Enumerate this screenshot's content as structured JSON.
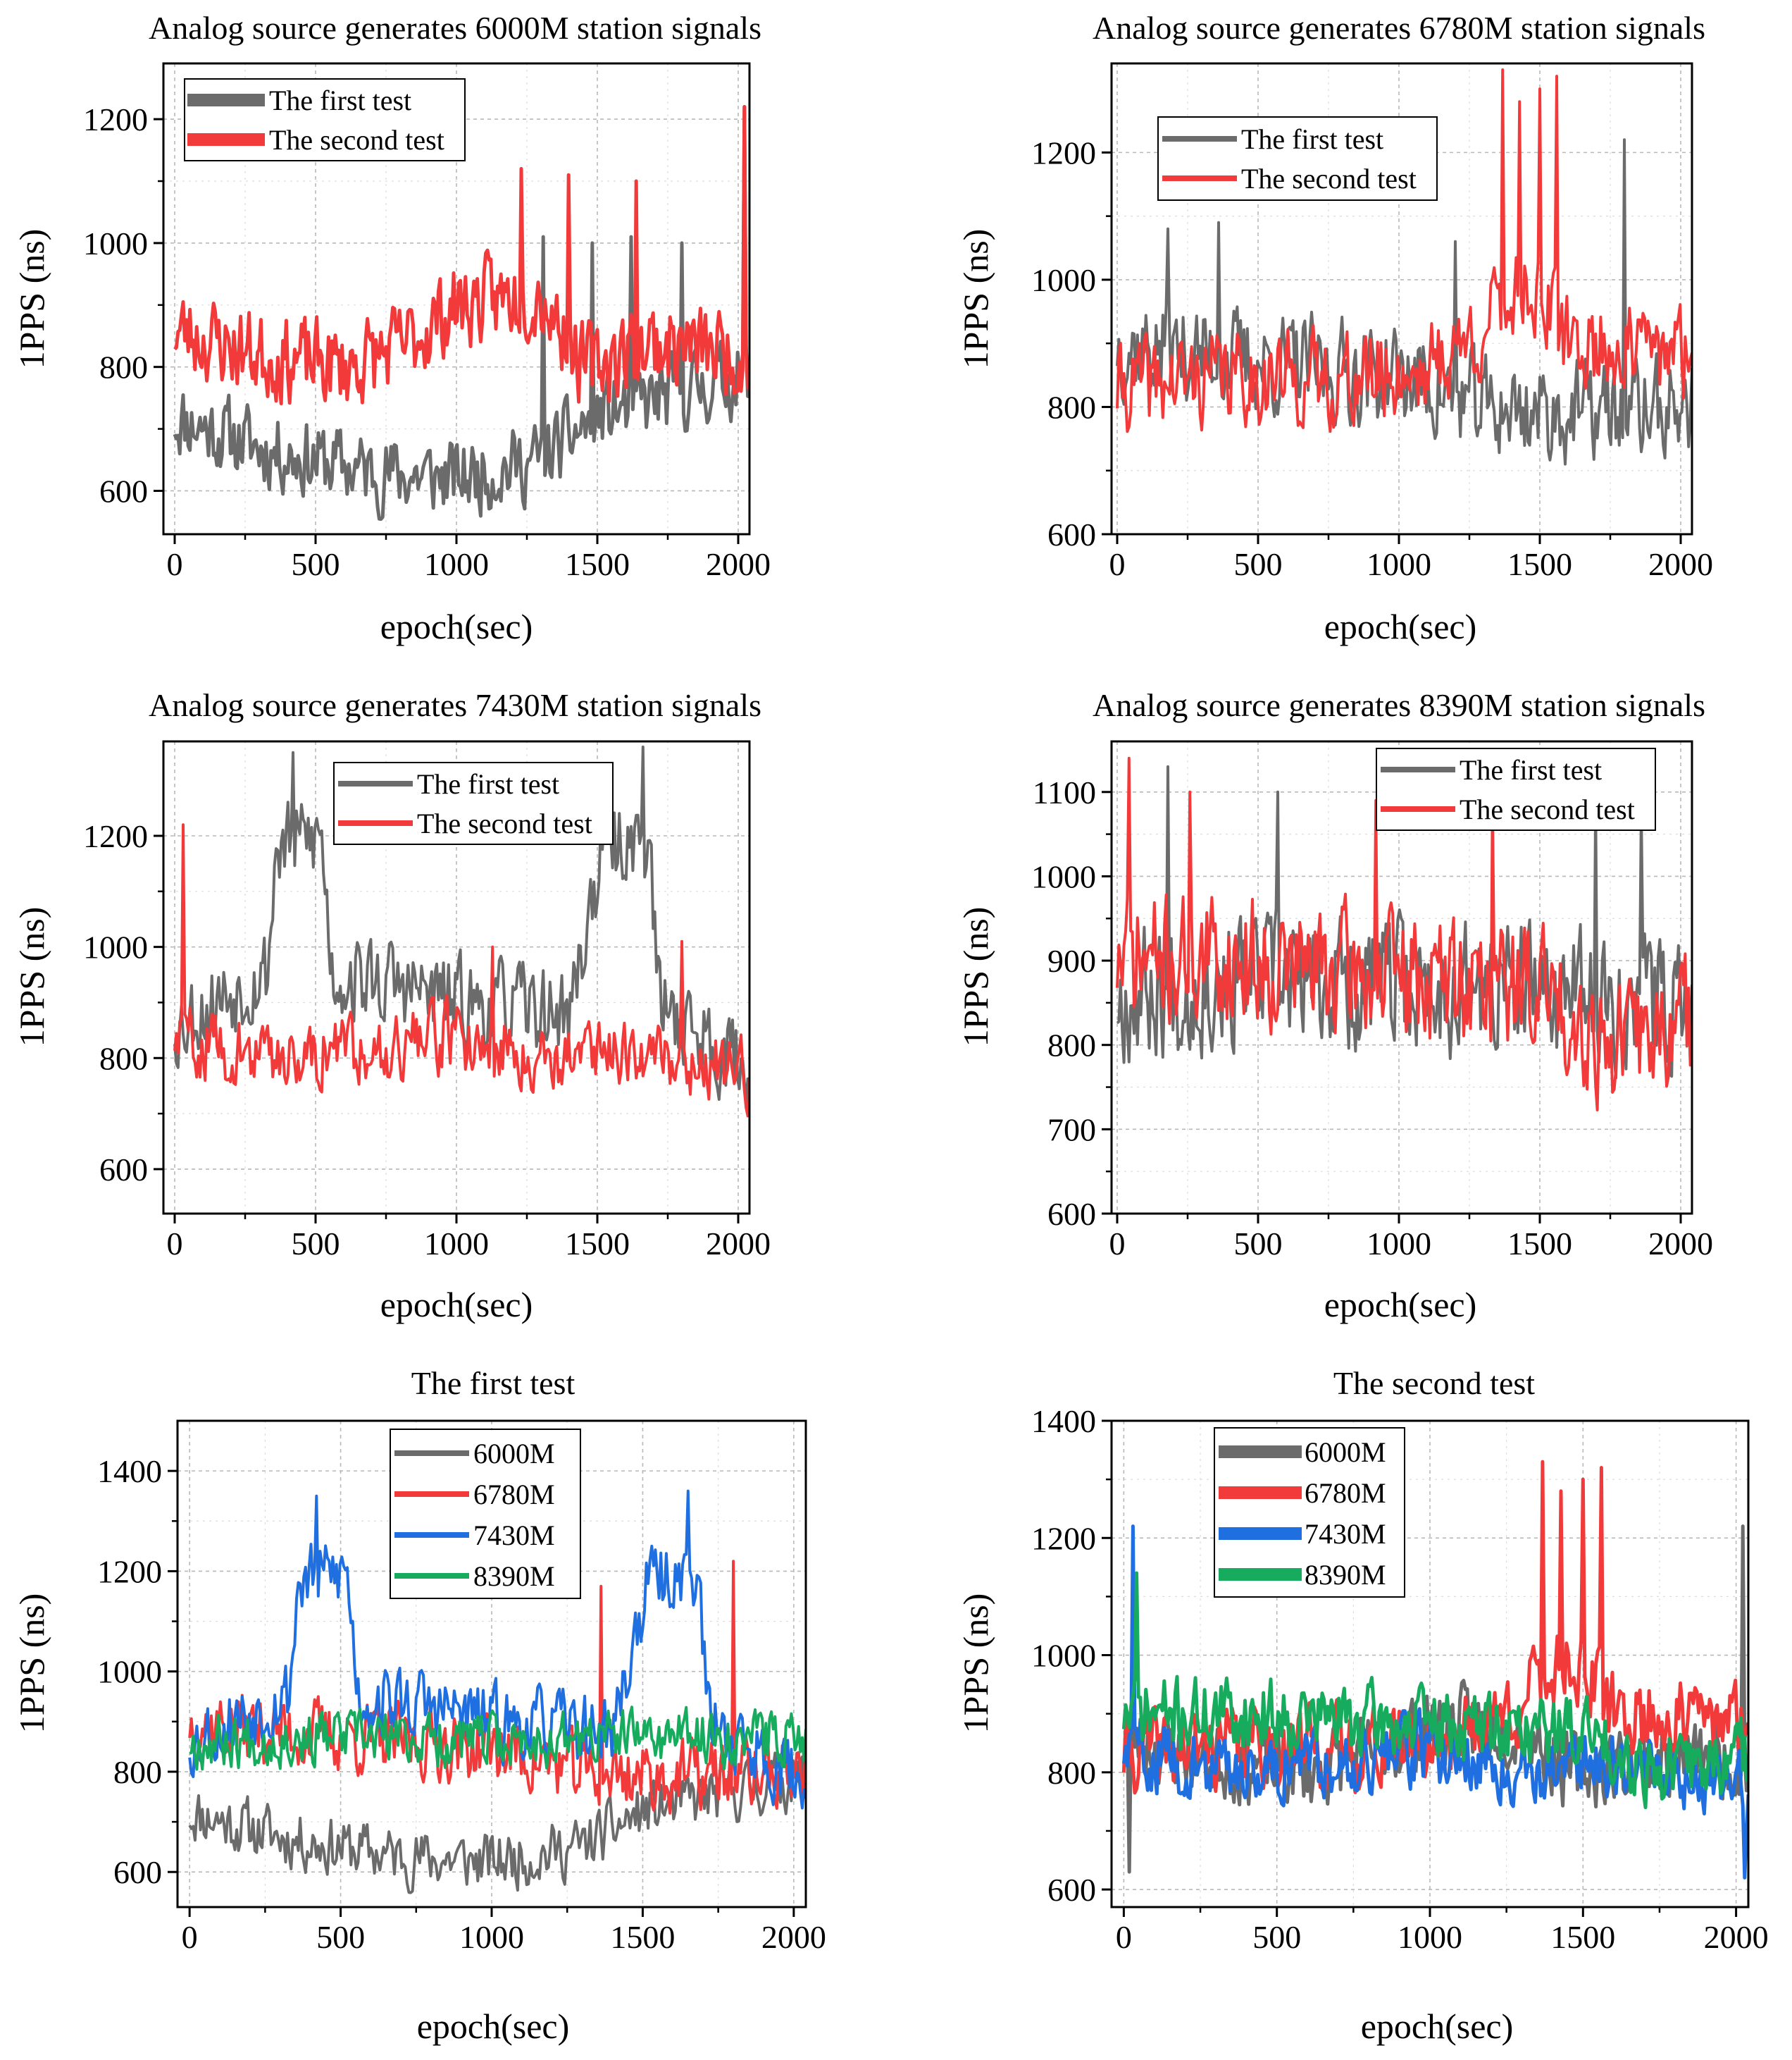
{
  "colors": {
    "gray": "#6b6b6b",
    "red": "#f23a3a",
    "blue": "#1f6fe0",
    "green": "#17ab5e"
  },
  "chart_data": [
    {
      "type": "line",
      "title": "Analog source generates 6000M station signals",
      "xlabel": "epoch(sec)",
      "ylabel": "1PPS (ns)",
      "xlim": [
        -40,
        2040
      ],
      "ylim": [
        530,
        1290
      ],
      "xticks": [
        0,
        500,
        1000,
        1500,
        2000
      ],
      "yticks": [
        600,
        800,
        1000,
        1200
      ],
      "grid": true,
      "legend_position": "top-left",
      "series": [
        {
          "name": "The first test",
          "color": "gray",
          "trend": [
            [
              0,
              720
            ],
            [
              300,
              670
            ],
            [
              700,
              630
            ],
            [
              1000,
              620
            ],
            [
              1300,
              650
            ],
            [
              1500,
              720
            ],
            [
              1800,
              760
            ],
            [
              2040,
              790
            ]
          ],
          "noise": 85,
          "spikes": [
            [
              1310,
              1010
            ],
            [
              1480,
              1000
            ],
            [
              1620,
              1010
            ],
            [
              1800,
              1000
            ],
            [
              2020,
              1220
            ]
          ],
          "seed": 11
        },
        {
          "name": "The second test",
          "color": "red",
          "trend": [
            [
              0,
              860
            ],
            [
              300,
              820
            ],
            [
              600,
              800
            ],
            [
              800,
              830
            ],
            [
              1000,
              900
            ],
            [
              1300,
              920
            ],
            [
              1450,
              800
            ],
            [
              1700,
              840
            ],
            [
              2040,
              820
            ]
          ],
          "noise": 95,
          "spikes": [
            [
              1230,
              1120
            ],
            [
              1400,
              1110
            ],
            [
              1640,
              1100
            ],
            [
              2020,
              1220
            ]
          ],
          "seed": 23
        }
      ]
    },
    {
      "type": "line",
      "title": "Analog source generates 6780M station signals",
      "xlabel": "epoch(sec)",
      "ylabel": "1PPS (ns)",
      "xlim": [
        -20,
        2040
      ],
      "ylim": [
        600,
        1340
      ],
      "xticks": [
        0,
        500,
        1000,
        1500,
        2000
      ],
      "yticks": [
        600,
        800,
        1000,
        1200
      ],
      "grid": true,
      "legend_position": "top-left",
      "series": [
        {
          "name": "The first test",
          "color": "gray",
          "trend": [
            [
              0,
              900
            ],
            [
              300,
              880
            ],
            [
              700,
              860
            ],
            [
              1000,
              850
            ],
            [
              1300,
              800
            ],
            [
              1600,
              790
            ],
            [
              2040,
              800
            ]
          ],
          "noise": 110,
          "spikes": [
            [
              180,
              1080
            ],
            [
              360,
              1090
            ],
            [
              1200,
              1060
            ],
            [
              1800,
              1220
            ]
          ],
          "seed": 37
        },
        {
          "name": "The second test",
          "color": "red",
          "trend": [
            [
              0,
              830
            ],
            [
              400,
              850
            ],
            [
              800,
              840
            ],
            [
              1100,
              860
            ],
            [
              1300,
              920
            ],
            [
              1450,
              1000
            ],
            [
              1600,
              900
            ],
            [
              2040,
              880
            ]
          ],
          "noise": 100,
          "spikes": [
            [
              1370,
              1330
            ],
            [
              1430,
              1280
            ],
            [
              1500,
              1300
            ],
            [
              1560,
              1320
            ]
          ],
          "seed": 41
        }
      ]
    },
    {
      "type": "line",
      "title": "Analog source generates 7430M station signals",
      "xlabel": "epoch(sec)",
      "ylabel": "1PPS (ns)",
      "xlim": [
        -40,
        2040
      ],
      "ylim": [
        520,
        1370
      ],
      "xticks": [
        0,
        500,
        1000,
        1500,
        2000
      ],
      "yticks": [
        600,
        800,
        1000,
        1200
      ],
      "grid": true,
      "legend_position": "top-center",
      "series": [
        {
          "name": "The first test",
          "color": "gray",
          "trend": [
            [
              0,
              860
            ],
            [
              330,
              960
            ],
            [
              360,
              1180
            ],
            [
              520,
              1200
            ],
            [
              560,
              950
            ],
            [
              800,
              930
            ],
            [
              1000,
              900
            ],
            [
              1400,
              880
            ],
            [
              1520,
              1180
            ],
            [
              1680,
              1200
            ],
            [
              1720,
              900
            ],
            [
              2040,
              780
            ]
          ],
          "noise": 110,
          "spikes": [
            [
              420,
              1350
            ],
            [
              1660,
              1360
            ]
          ],
          "seed": 53
        },
        {
          "name": "The second test",
          "color": "red",
          "trend": [
            [
              0,
              840
            ],
            [
              300,
              800
            ],
            [
              700,
              820
            ],
            [
              1000,
              840
            ],
            [
              1300,
              800
            ],
            [
              1600,
              820
            ],
            [
              2040,
              770
            ]
          ],
          "noise": 85,
          "spikes": [
            [
              30,
              1220
            ],
            [
              1130,
              1000
            ],
            [
              1800,
              1010
            ]
          ],
          "seed": 59
        }
      ]
    },
    {
      "type": "line",
      "title": "Analog source generates 8390M station signals",
      "xlabel": "epoch(sec)",
      "ylabel": "1PPS (ns)",
      "xlim": [
        -20,
        2040
      ],
      "ylim": [
        600,
        1160
      ],
      "xticks": [
        0,
        500,
        1000,
        1500,
        2000
      ],
      "yticks": [
        600,
        700,
        800,
        900,
        1000,
        1100
      ],
      "grid": true,
      "legend_position": "top-right",
      "series": [
        {
          "name": "The first test",
          "color": "gray",
          "trend": [
            [
              0,
              860
            ],
            [
              500,
              880
            ],
            [
              1000,
              870
            ],
            [
              1500,
              860
            ],
            [
              2040,
              850
            ]
          ],
          "noise": 110,
          "spikes": [
            [
              180,
              1130
            ],
            [
              570,
              1100
            ],
            [
              1700,
              1090
            ],
            [
              1860,
              1080
            ]
          ],
          "seed": 67
        },
        {
          "name": "The second test",
          "color": "red",
          "trend": [
            [
              0,
              900
            ],
            [
              500,
              900
            ],
            [
              1000,
              880
            ],
            [
              1500,
              870
            ],
            [
              1750,
              800
            ],
            [
              2040,
              830
            ]
          ],
          "noise": 105,
          "spikes": [
            [
              40,
              1140
            ],
            [
              260,
              1100
            ],
            [
              920,
              1090
            ],
            [
              1330,
              1090
            ]
          ],
          "seed": 71
        }
      ]
    },
    {
      "type": "line",
      "title": "The first test",
      "xlabel": "epoch(sec)",
      "ylabel": "1PPS (ns)",
      "xlim": [
        -40,
        2040
      ],
      "ylim": [
        530,
        1500
      ],
      "xticks": [
        0,
        500,
        1000,
        1500,
        2000
      ],
      "yticks": [
        600,
        800,
        1000,
        1200,
        1400
      ],
      "grid": true,
      "legend_position": "top-center",
      "series": [
        {
          "name": "6000M",
          "color": "gray",
          "trend": [
            [
              0,
              720
            ],
            [
              300,
              670
            ],
            [
              700,
              630
            ],
            [
              1000,
              620
            ],
            [
              1300,
              650
            ],
            [
              1500,
              720
            ],
            [
              1800,
              760
            ],
            [
              2040,
              790
            ]
          ],
          "noise": 80,
          "spikes": [],
          "seed": 11
        },
        {
          "name": "6780M",
          "color": "red",
          "trend": [
            [
              0,
              900
            ],
            [
              300,
              880
            ],
            [
              700,
              860
            ],
            [
              1000,
              850
            ],
            [
              1300,
              800
            ],
            [
              1600,
              790
            ],
            [
              2040,
              800
            ]
          ],
          "noise": 100,
          "spikes": [
            [
              1360,
              1170
            ],
            [
              1800,
              1220
            ]
          ],
          "seed": 37
        },
        {
          "name": "7430M",
          "color": "blue",
          "trend": [
            [
              0,
              860
            ],
            [
              330,
              960
            ],
            [
              360,
              1180
            ],
            [
              520,
              1200
            ],
            [
              560,
              950
            ],
            [
              800,
              930
            ],
            [
              1000,
              900
            ],
            [
              1400,
              880
            ],
            [
              1520,
              1180
            ],
            [
              1680,
              1200
            ],
            [
              1720,
              900
            ],
            [
              2040,
              780
            ]
          ],
          "noise": 100,
          "spikes": [
            [
              420,
              1350
            ],
            [
              1650,
              1360
            ]
          ],
          "seed": 53
        },
        {
          "name": "8390M",
          "color": "green",
          "trend": [
            [
              0,
              860
            ],
            [
              500,
              870
            ],
            [
              1000,
              860
            ],
            [
              1500,
              870
            ],
            [
              2040,
              870
            ]
          ],
          "noise": 75,
          "spikes": [],
          "seed": 67
        }
      ]
    },
    {
      "type": "line",
      "title": "The second test",
      "xlabel": "epoch(sec)",
      "ylabel": "1PPS (ns)",
      "xlim": [
        -40,
        2040
      ],
      "ylim": [
        570,
        1400
      ],
      "xticks": [
        0,
        500,
        1000,
        1500,
        2000
      ],
      "yticks": [
        600,
        800,
        1000,
        1200,
        1400
      ],
      "grid": true,
      "legend_position": "top-left",
      "series": [
        {
          "name": "6000M",
          "color": "gray",
          "trend": [
            [
              0,
              860
            ],
            [
              300,
              820
            ],
            [
              600,
              800
            ],
            [
              800,
              830
            ],
            [
              1000,
              880
            ],
            [
              1300,
              880
            ],
            [
              1450,
              800
            ],
            [
              1700,
              820
            ],
            [
              2040,
              820
            ]
          ],
          "noise": 90,
          "spikes": [
            [
              20,
              630
            ],
            [
              2020,
              1220
            ]
          ],
          "seed": 23
        },
        {
          "name": "6780M",
          "color": "red",
          "trend": [
            [
              0,
              830
            ],
            [
              400,
              850
            ],
            [
              800,
              840
            ],
            [
              1100,
              860
            ],
            [
              1300,
              920
            ],
            [
              1450,
              1000
            ],
            [
              1600,
              900
            ],
            [
              2040,
              880
            ]
          ],
          "noise": 95,
          "spikes": [
            [
              1370,
              1330
            ],
            [
              1430,
              1280
            ],
            [
              1500,
              1300
            ],
            [
              1560,
              1320
            ]
          ],
          "seed": 41
        },
        {
          "name": "7430M",
          "color": "blue",
          "trend": [
            [
              0,
              840
            ],
            [
              300,
              800
            ],
            [
              700,
              820
            ],
            [
              1000,
              840
            ],
            [
              1300,
              800
            ],
            [
              1600,
              820
            ],
            [
              2040,
              770
            ]
          ],
          "noise": 80,
          "spikes": [
            [
              30,
              1220
            ],
            [
              2030,
              620
            ]
          ],
          "seed": 59
        },
        {
          "name": "8390M",
          "color": "green",
          "trend": [
            [
              0,
              900
            ],
            [
              500,
              900
            ],
            [
              1000,
              880
            ],
            [
              1500,
              870
            ],
            [
              1750,
              800
            ],
            [
              2040,
              830
            ]
          ],
          "noise": 85,
          "spikes": [
            [
              40,
              1140
            ]
          ],
          "seed": 71
        }
      ]
    }
  ]
}
